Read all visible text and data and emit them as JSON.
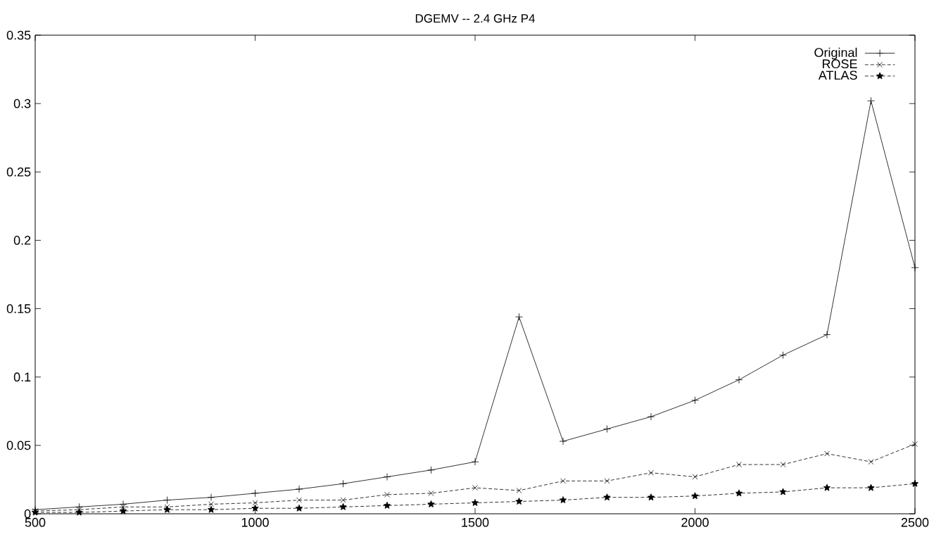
{
  "chart_data": {
    "type": "line",
    "title": "DGEMV -- 2.4 GHz P4",
    "x": [
      500,
      600,
      700,
      800,
      900,
      1000,
      1100,
      1200,
      1300,
      1400,
      1500,
      1600,
      1700,
      1800,
      1900,
      2000,
      2100,
      2200,
      2300,
      2400,
      2500
    ],
    "series": [
      {
        "name": "Original",
        "color": "#000000",
        "marker": "plus",
        "line_style": "solid",
        "values": [
          0.003,
          0.005,
          0.007,
          0.01,
          0.012,
          0.015,
          0.018,
          0.022,
          0.027,
          0.032,
          0.038,
          0.144,
          0.053,
          0.062,
          0.071,
          0.083,
          0.098,
          0.116,
          0.131,
          0.302,
          0.18
        ]
      },
      {
        "name": "ROSE",
        "color": "#000000",
        "marker": "cross",
        "line_style": "dashed",
        "values": [
          0.002,
          0.003,
          0.005,
          0.005,
          0.007,
          0.008,
          0.01,
          0.01,
          0.014,
          0.015,
          0.019,
          0.017,
          0.024,
          0.024,
          0.03,
          0.027,
          0.036,
          0.036,
          0.044,
          0.038,
          0.051
        ]
      },
      {
        "name": "ATLAS",
        "color": "#000000",
        "marker": "star",
        "line_style": "dashed",
        "values": [
          0.001,
          0.001,
          0.002,
          0.003,
          0.003,
          0.004,
          0.004,
          0.005,
          0.006,
          0.007,
          0.008,
          0.009,
          0.01,
          0.012,
          0.012,
          0.013,
          0.015,
          0.016,
          0.019,
          0.019,
          0.022
        ]
      }
    ],
    "xlim": [
      500,
      2500
    ],
    "xticks": [
      500,
      1000,
      1500,
      2000,
      2500
    ],
    "ylim": [
      0,
      0.35
    ],
    "yticks": [
      0,
      0.05,
      0.1,
      0.15,
      0.2,
      0.25,
      0.3,
      0.35
    ],
    "grid": false,
    "legend": "top right"
  }
}
